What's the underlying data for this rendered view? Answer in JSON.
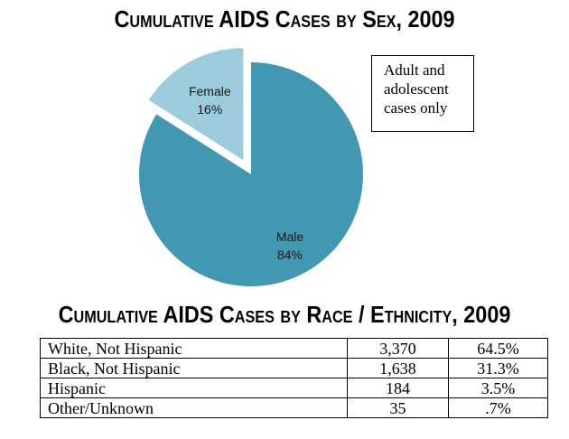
{
  "titles": {
    "sex": "Cumulative AIDS Cases by Sex, 2009",
    "race": "Cumulative AIDS Cases by Race / Ethnicity, 2009"
  },
  "note": "Adult and adolescent cases only",
  "chart_data": [
    {
      "type": "pie",
      "title": "Cumulative AIDS Cases by Sex, 2009",
      "slices": [
        {
          "label": "Female",
          "value_label": "16%",
          "value": 16,
          "color": "#9ccbdb",
          "exploded": true
        },
        {
          "label": "Male",
          "value_label": "84%",
          "value": 84,
          "color": "#4198b0",
          "exploded": false
        }
      ]
    },
    {
      "type": "table",
      "title": "Cumulative AIDS Cases by Race / Ethnicity, 2009",
      "rows": [
        {
          "group": "White, Not Hispanic",
          "count": "3,370",
          "percent": "64.5%"
        },
        {
          "group": "Black, Not Hispanic",
          "count": "1,638",
          "percent": "31.3%"
        },
        {
          "group": "Hispanic",
          "count": "184",
          "percent": "3.5%"
        },
        {
          "group": "Other/Unknown",
          "count": "35",
          "percent": ".7%"
        }
      ]
    }
  ]
}
